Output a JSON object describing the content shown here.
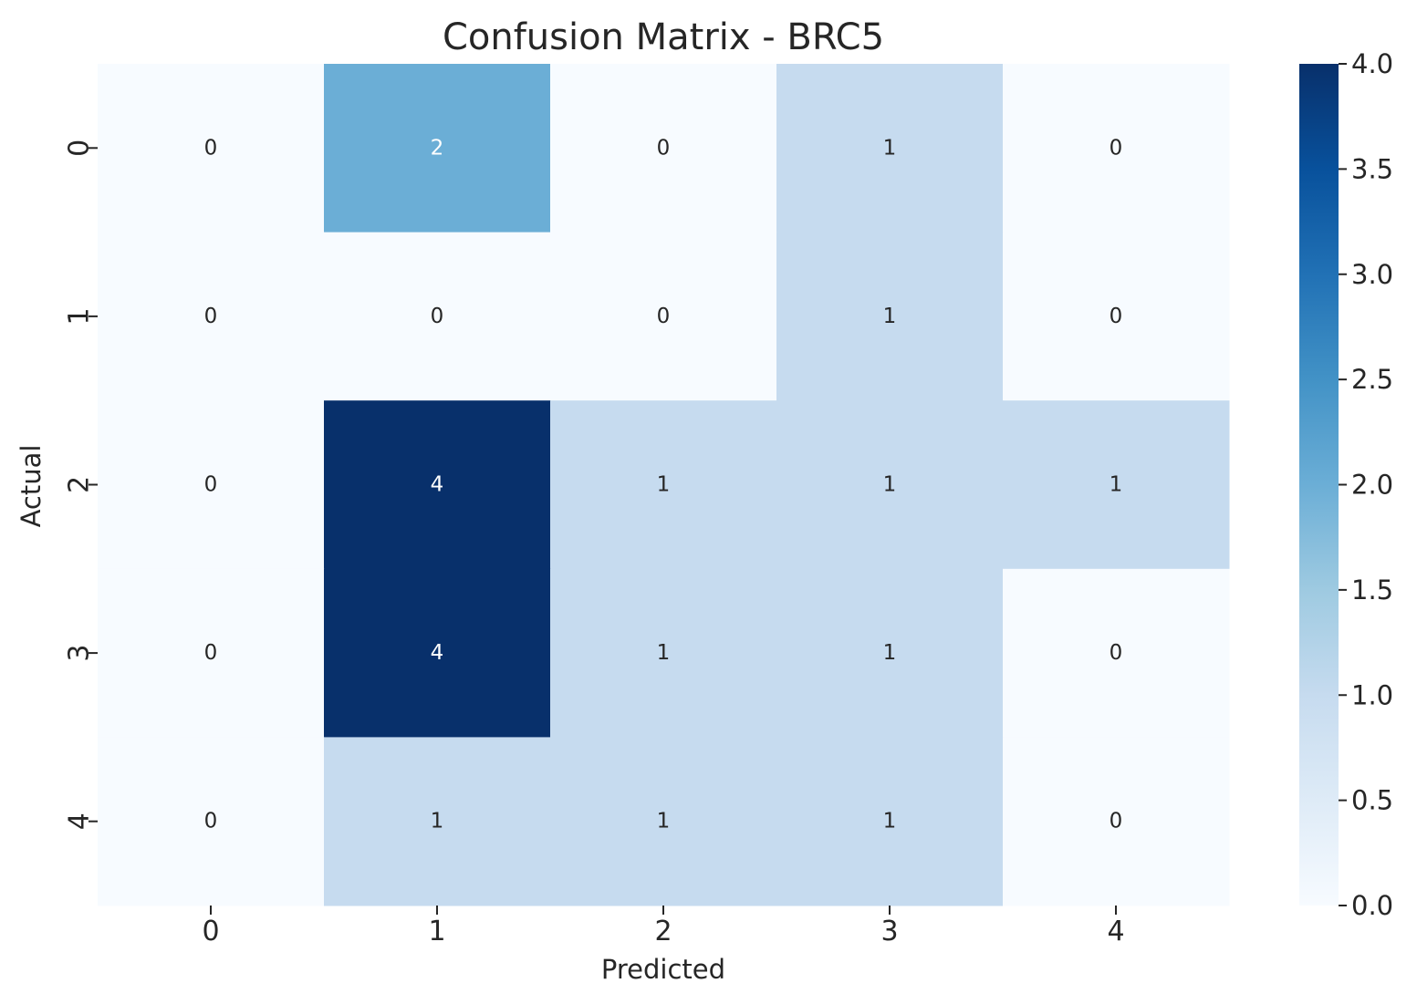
{
  "chart_data": {
    "type": "heatmap",
    "title": "Confusion Matrix - BRC5",
    "xlabel": "Predicted",
    "ylabel": "Actual",
    "x_categories": [
      "0",
      "1",
      "2",
      "3",
      "4"
    ],
    "y_categories": [
      "0",
      "1",
      "2",
      "3",
      "4"
    ],
    "matrix": [
      [
        0,
        2,
        0,
        1,
        0
      ],
      [
        0,
        0,
        0,
        1,
        0
      ],
      [
        0,
        4,
        1,
        1,
        1
      ],
      [
        0,
        4,
        1,
        1,
        0
      ],
      [
        0,
        1,
        1,
        1,
        0
      ]
    ],
    "colormap": "Blues",
    "value_range": [
      0,
      4
    ],
    "colorbar": {
      "ticks": [
        0.0,
        0.5,
        1.0,
        1.5,
        2.0,
        2.5,
        3.0,
        3.5,
        4.0
      ],
      "tick_labels": [
        "0.0",
        "0.5",
        "1.0",
        "1.5",
        "2.0",
        "2.5",
        "3.0",
        "3.5",
        "4.0"
      ]
    },
    "annotated": true,
    "grid": false
  }
}
